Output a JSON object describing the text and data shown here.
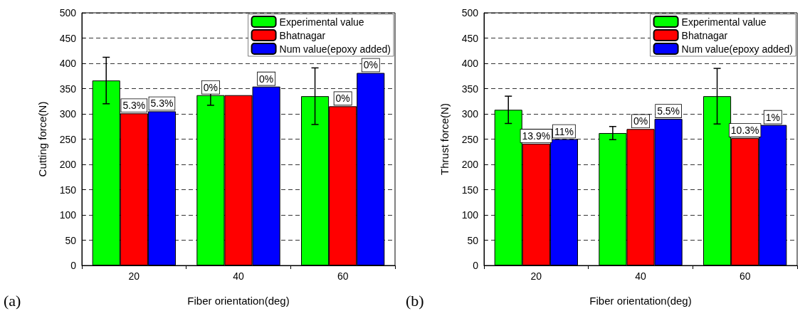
{
  "chart_data": [
    {
      "type": "bar",
      "xlabel": "Fiber orientation(deg)",
      "ylabel": "Cutting force(N)",
      "categories": [
        "20",
        "40",
        "60"
      ],
      "annotations": [
        "(a)",
        {
          "text": "5.3%",
          "x": "20",
          "y": 301
        },
        {
          "text": "5.3%",
          "x": "20",
          "y": 305
        },
        {
          "text": "0%",
          "x": "40",
          "y": 337
        },
        "0%",
        {
          "text": "0%",
          "x": "60",
          "y": 315
        },
        "0%"
      ],
      "series": [
        {
          "name": "Experimental value",
          "color": "#00ff00",
          "values": [
            366,
            337,
            335
          ],
          "errors": [
            46,
            20,
            56
          ]
        },
        {
          "name": "Bhatnagar",
          "color": "#ff0000",
          "values": [
            301,
            337,
            315
          ]
        },
        {
          "name": "Num value(epoxy added)",
          "color": "#0000ff",
          "values": [
            305,
            354,
            381
          ]
        }
      ],
      "ylim": [
        0,
        500
      ],
      "yticks": [
        0,
        50,
        100,
        150,
        200,
        250,
        300,
        350,
        400,
        450,
        500
      ],
      "grid": "y",
      "legend": "top right"
    },
    {
      "type": "bar",
      "xlabel": "Fiber orientation(deg)",
      "ylabel": "Thrust force(N)",
      "categories": [
        "20",
        "40",
        "60"
      ],
      "annotations": [
        "(b)",
        {
          "text": "13.9%",
          "x": "20",
          "y": 241
        },
        "11%",
        {
          "text": "0%",
          "x": "40",
          "y": 270
        },
        "5.5%",
        {
          "text": "10.3%",
          "x": "60",
          "y": 252
        },
        "1%"
      ],
      "series": [
        {
          "name": "Experimental value",
          "color": "#00ff00",
          "values": [
            308,
            262,
            335
          ],
          "errors": [
            27,
            13,
            55
          ]
        },
        {
          "name": "Bhatnagar",
          "color": "#ff0000",
          "values": [
            241,
            270,
            252
          ]
        },
        {
          "name": "Num value(epoxy added)",
          "color": "#0000ff",
          "values": [
            250,
            290,
            278
          ]
        }
      ],
      "ylim": [
        0,
        500
      ],
      "yticks": [
        0,
        50,
        100,
        150,
        200,
        250,
        300,
        350,
        400,
        450,
        500
      ],
      "grid": "y",
      "legend": "top right"
    }
  ]
}
